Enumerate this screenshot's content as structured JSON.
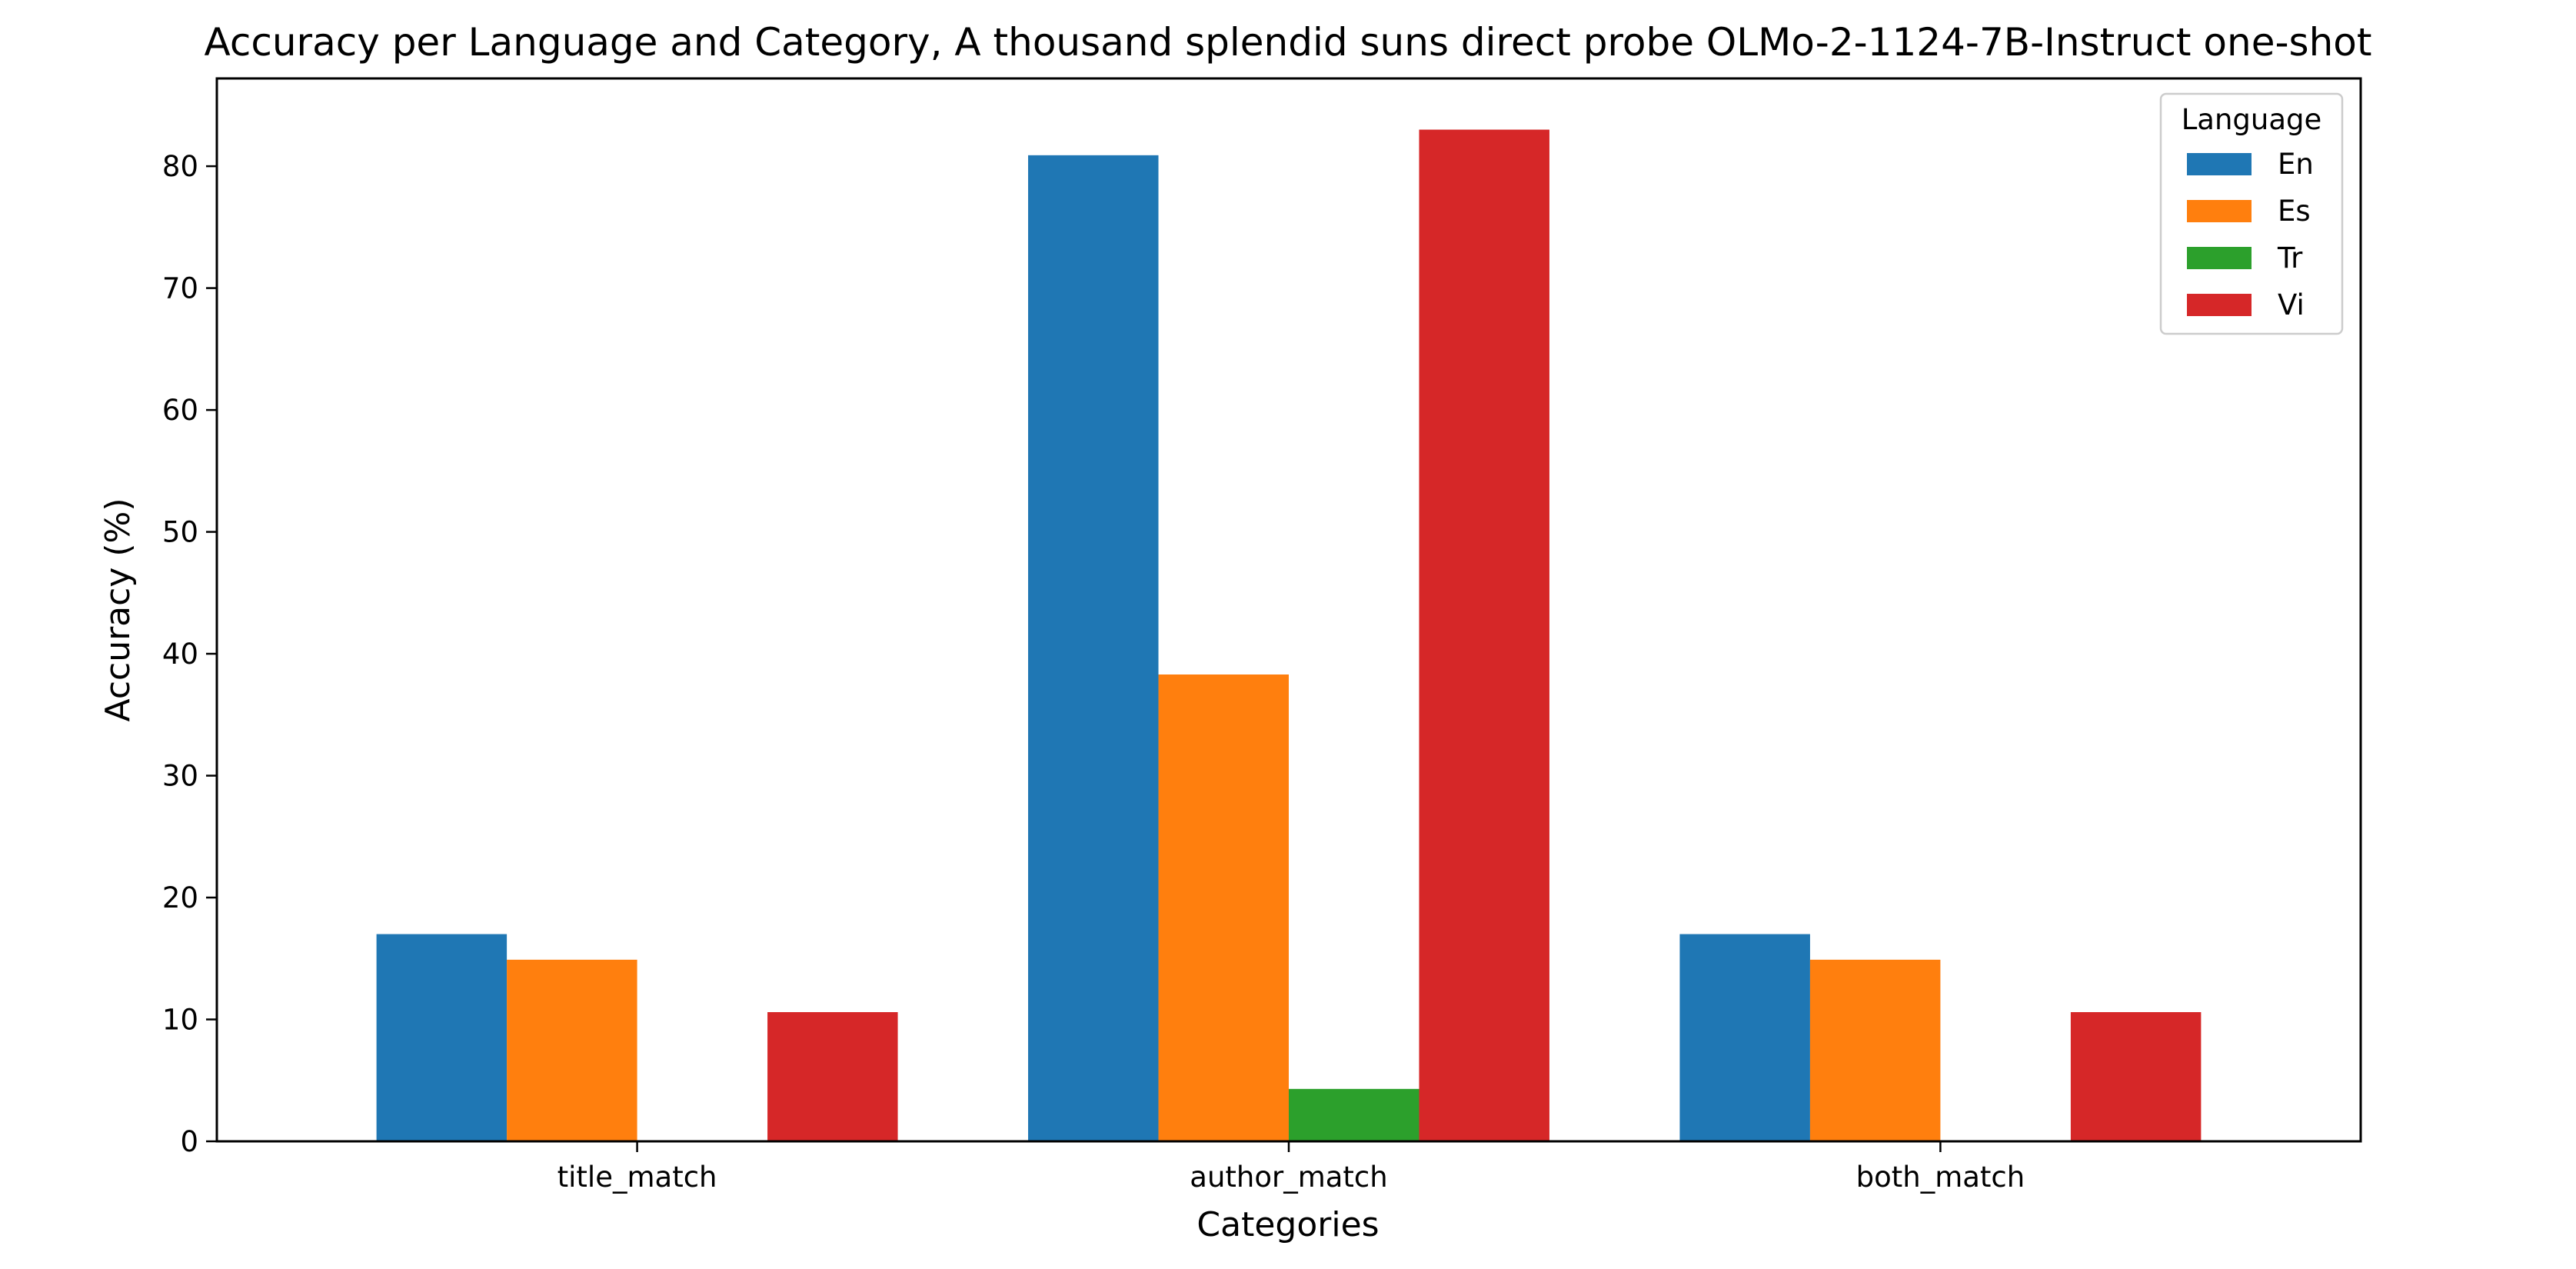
{
  "chart_data": {
    "type": "bar",
    "title": "Accuracy per Language and Category, A thousand splendid suns direct probe OLMo-2-1124-7B-Instruct one-shot",
    "xlabel": "Categories",
    "ylabel": "Accuracy (%)",
    "categories": [
      "title_match",
      "author_match",
      "both_match"
    ],
    "series": [
      {
        "name": "En",
        "color": "#1f77b4",
        "values": [
          17.0,
          80.9,
          17.0
        ]
      },
      {
        "name": "Es",
        "color": "#ff7f0e",
        "values": [
          14.9,
          38.3,
          14.9
        ]
      },
      {
        "name": "Tr",
        "color": "#2ca02c",
        "values": [
          0.0,
          4.3,
          0.0
        ]
      },
      {
        "name": "Vi",
        "color": "#d62728",
        "values": [
          10.6,
          83.0,
          10.6
        ]
      }
    ],
    "ylim": [
      0,
      87.2
    ],
    "yticks": [
      0,
      10,
      20,
      30,
      40,
      50,
      60,
      70,
      80
    ],
    "grid": false,
    "legend": {
      "title": "Language",
      "placement": "top-right"
    }
  }
}
